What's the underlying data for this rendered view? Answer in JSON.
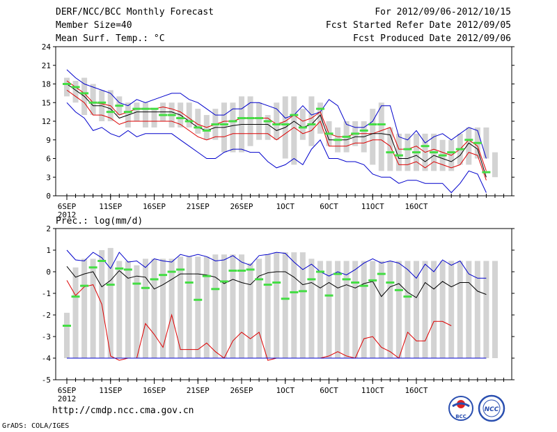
{
  "header": {
    "title": "DERF/NCC/BCC Monthly Forecast",
    "member_size": "Member Size=40",
    "period": "For 2012/09/06-2012/10/15",
    "started": "Fcst Started Refer Date 2012/09/05",
    "produced": "Fcst Produced Date 2012/09/06"
  },
  "footer": {
    "url": "http://cmdp.ncc.cma.gov.cn",
    "grads": "GrADS: COLA/IGES",
    "logo_bcc": "BCC",
    "logo_ncc": "NCC"
  },
  "colors": {
    "bar": "#d3d3d3",
    "max": "#0000cc",
    "min": "#0000cc",
    "upper": "#dd0000",
    "lower": "#dd0000",
    "mean": "#000000",
    "green": "#44dd44"
  },
  "chart_data": [
    {
      "type": "line",
      "title": "Mean Surf. Temp.: °C",
      "ylim": [
        0,
        24
      ],
      "yticks": [
        0,
        3,
        6,
        9,
        12,
        15,
        18,
        21,
        24
      ],
      "ytick_labels": [
        "0",
        "3",
        "6",
        "9",
        "12",
        "15",
        "18",
        "21",
        "24"
      ],
      "x_tick_positions": [
        0,
        5,
        10,
        15,
        20,
        25,
        30,
        35,
        40
      ],
      "x_tick_labels": [
        "6SEP",
        "11SEP",
        "16SEP",
        "21SEP",
        "26SEP",
        "1OCT",
        "6OCT",
        "11OCT",
        "16OCT"
      ],
      "x_year_label": "2012",
      "bar_top": [
        19,
        18.5,
        19,
        18,
        17,
        17,
        16,
        15,
        15,
        15,
        14,
        15,
        15,
        15,
        15,
        14,
        13,
        14,
        15,
        15,
        16,
        16,
        15,
        13,
        15,
        16,
        16,
        14,
        16,
        15,
        12,
        11,
        12,
        12,
        12,
        14,
        15,
        11,
        10,
        10,
        10,
        10,
        10,
        9,
        9,
        10,
        11,
        11,
        11,
        7
      ],
      "bar_bottom": [
        16,
        15,
        13,
        13,
        12,
        12,
        13,
        11,
        12,
        11,
        11,
        12,
        11,
        11,
        11,
        10,
        9,
        9,
        7,
        7,
        7,
        8,
        9,
        9,
        9,
        6,
        5,
        9,
        8,
        10,
        8,
        7,
        7,
        8,
        7,
        5,
        4,
        4,
        4,
        4,
        4,
        4,
        4,
        4,
        4,
        5,
        5,
        6,
        6,
        3
      ],
      "series": [
        {
          "name": "max",
          "values": [
            20.3,
            19,
            18,
            17.5,
            17,
            16.5,
            15,
            14.5,
            15.5,
            15,
            15.5,
            16,
            16.5,
            16.5,
            15.5,
            15,
            14,
            13,
            13,
            14,
            14,
            15,
            15,
            14.5,
            14,
            12.5,
            13,
            14.5,
            13,
            13.5,
            15.5,
            14.5,
            11.5,
            11,
            11,
            12,
            14.5,
            14.5,
            9.5,
            9,
            10.5,
            8.5,
            9.5,
            10,
            9,
            10,
            11,
            10.5,
            6
          ]
        },
        {
          "name": "upper",
          "values": [
            18.5,
            17.5,
            16.5,
            15,
            14.8,
            14.5,
            13,
            13.5,
            14,
            14,
            14,
            14.3,
            14,
            13.5,
            12.5,
            11.5,
            11,
            11.5,
            12,
            12,
            12.5,
            12.5,
            12.5,
            12.5,
            11.5,
            12,
            13,
            12,
            12.5,
            13.5,
            10,
            9.5,
            9.5,
            10,
            10,
            10,
            10.5,
            11,
            7.5,
            7.5,
            8,
            7,
            7.5,
            7,
            6.5,
            7.5,
            9,
            8,
            4
          ]
        },
        {
          "name": "mean",
          "values": [
            18,
            17,
            16,
            14.5,
            14.5,
            14,
            12.5,
            13,
            13.5,
            13.5,
            13.5,
            13.5,
            13.5,
            13,
            12,
            11,
            10.5,
            11,
            11,
            11.3,
            11.5,
            11.5,
            11.5,
            11.5,
            10.5,
            11,
            12,
            11,
            11.5,
            13,
            9,
            9,
            9,
            9.5,
            9.5,
            10,
            10,
            9.8,
            6,
            6,
            6.5,
            5.5,
            6.5,
            6,
            5.5,
            6.5,
            8.5,
            7.5,
            3
          ]
        },
        {
          "name": "lower",
          "values": [
            17,
            16,
            15,
            13,
            13,
            12.5,
            11.5,
            12,
            12,
            12,
            12,
            12,
            12,
            11.5,
            10.5,
            9.5,
            9,
            9.5,
            9.5,
            10,
            10,
            10,
            10,
            10,
            9,
            10,
            11,
            10,
            10.5,
            12,
            8,
            8,
            8,
            8.5,
            8.5,
            9,
            9,
            8,
            5,
            5,
            5.5,
            4.5,
            5.5,
            5,
            4.5,
            5,
            7,
            6.5,
            2.5
          ]
        },
        {
          "name": "min",
          "values": [
            15,
            13.5,
            12.5,
            10.5,
            11,
            10,
            9.5,
            10.5,
            9.5,
            10,
            10,
            10,
            10,
            9,
            8,
            7,
            6,
            6,
            7,
            7.5,
            7.5,
            7,
            7,
            5.5,
            4.5,
            5,
            6,
            5,
            7.5,
            9,
            6,
            6,
            5.5,
            5.5,
            5,
            3.5,
            3,
            3,
            2,
            2.5,
            2.5,
            2,
            2,
            2,
            0.5,
            2,
            4,
            3.5,
            0.5
          ]
        }
      ],
      "markers": [
        18,
        17.5,
        16.5,
        15,
        15,
        13.5,
        14.5,
        13.5,
        14,
        14,
        14,
        13,
        13,
        12.5,
        12,
        11,
        10.5,
        11.5,
        11.5,
        12,
        12.5,
        12.5,
        12.5,
        12,
        11.5,
        11.5,
        13,
        11,
        11.5,
        14,
        10,
        9,
        9.5,
        10,
        10.5,
        11.5,
        11.5,
        7,
        6.5,
        7.5,
        7,
        8,
        7,
        6.5,
        7,
        7.5,
        9,
        8.5,
        3.8
      ]
    },
    {
      "type": "line",
      "title": "Prec.: log(mm/d)",
      "ylim": [
        -5,
        2
      ],
      "yticks": [
        -5,
        -4,
        -3,
        -2,
        -1,
        0,
        1,
        2
      ],
      "ytick_labels": [
        "-5",
        "-4",
        "-3",
        "-2",
        "-1",
        "0",
        "1",
        "2"
      ],
      "x_tick_positions": [
        0,
        5,
        10,
        15,
        20,
        25,
        30,
        35,
        40
      ],
      "x_tick_labels": [
        "6SEP",
        "11SEP",
        "16SEP",
        "21SEP",
        "26SEP",
        "1OCT",
        "6OCT",
        "11OCT",
        "16OCT"
      ],
      "x_year_label": "2012",
      "bar_top": [
        -1.9,
        0.2,
        0.6,
        0.6,
        1,
        1.1,
        0.5,
        0.5,
        0.3,
        0.6,
        0.6,
        0.6,
        0.6,
        0.7,
        0.7,
        0.7,
        0.7,
        0.8,
        0.8,
        0.8,
        0.8,
        0.4,
        0.6,
        0.8,
        0.9,
        0.9,
        0.9,
        0.9,
        0.6,
        0.5,
        0.5,
        0.5,
        0.5,
        0.5,
        0.5,
        0.5,
        0.5,
        0.5,
        0.5,
        0.5,
        0.5,
        0.5,
        0.5,
        0.5,
        0.5,
        0.5,
        0.5,
        0.5,
        0.5,
        0.5
      ],
      "bar_bottom": [
        -4,
        -4,
        -4,
        -4,
        -4,
        -4,
        -4,
        -4,
        -4,
        -4,
        -4,
        -4,
        -4,
        -4,
        -4,
        -4,
        -4,
        -4,
        -4,
        -4,
        -4,
        -4,
        -4,
        -4,
        -4,
        -4,
        -4,
        -4,
        -4,
        -4,
        -4,
        -4,
        -4,
        -4,
        -4,
        -4,
        -4,
        -4,
        -4,
        -4,
        -4,
        -4,
        -4,
        -4,
        -4,
        -4,
        -4,
        -4,
        -4,
        -4
      ],
      "series": [
        {
          "name": "max",
          "values": [
            1,
            0.55,
            0.5,
            0.9,
            0.65,
            0.15,
            0.9,
            0.45,
            0.5,
            0.2,
            0.6,
            0.5,
            0.45,
            0.8,
            0.7,
            0.8,
            0.7,
            0.5,
            0.55,
            0.75,
            0.45,
            0.3,
            0.75,
            0.8,
            0.9,
            0.85,
            0.45,
            0.1,
            0.35,
            0,
            -0.2,
            0,
            -0.15,
            0.1,
            0.4,
            0.6,
            0.4,
            0.5,
            0.4,
            0.1,
            -0.3,
            0.35,
            0,
            0.55,
            0.3,
            0.5,
            -0.1,
            -0.3,
            -0.3
          ]
        },
        {
          "name": "mean",
          "values": [
            0.25,
            -0.25,
            -0.1,
            0,
            -0.7,
            -0.4,
            0.05,
            -0.3,
            -0.2,
            -0.25,
            -0.8,
            -0.6,
            -0.35,
            -0.1,
            -0.1,
            -0.1,
            -0.15,
            -0.25,
            -0.55,
            -0.35,
            -0.5,
            -0.6,
            -0.2,
            -0.05,
            0,
            0,
            -0.25,
            -0.6,
            -0.5,
            -0.75,
            -0.5,
            -0.75,
            -0.6,
            -0.75,
            -0.55,
            -0.45,
            -1.15,
            -0.7,
            -0.55,
            -0.95,
            -1.2,
            -0.5,
            -0.8,
            -0.45,
            -0.7,
            -0.5,
            -0.5,
            -0.9,
            -1.05
          ]
        },
        {
          "name": "lower",
          "values": [
            -0.4,
            -1.1,
            -0.7,
            -0.6,
            -1.5,
            -3.9,
            -4.1,
            -4,
            -4,
            -2.4,
            -2.9,
            -3.5,
            -2,
            -3.6,
            -3.6,
            -3.6,
            -3.3,
            -3.7,
            -4,
            -3.2,
            -2.8,
            -3.1,
            -2.8,
            -4.1,
            -4,
            -4,
            -4,
            -4,
            -4,
            -4,
            -3.9,
            -3.7,
            -3.9,
            -4,
            -3.1,
            -3,
            -3.5,
            -3.7,
            -4,
            -2.8,
            -3.2,
            -3.2,
            -2.3,
            -2.3,
            -2.5
          ]
        },
        {
          "name": "min",
          "values": [
            -4,
            -4,
            -4,
            -4,
            -4,
            -4,
            -4,
            -4,
            -4,
            -4,
            -4,
            -4,
            -4,
            -4,
            -4,
            -4,
            -4,
            -4,
            -4,
            -4,
            -4,
            -4,
            -4,
            -4,
            -4,
            -4,
            -4,
            -4,
            -4,
            -4,
            -4,
            -4,
            -4,
            -4,
            -4,
            -4,
            -4,
            -4,
            -4,
            -4,
            -4,
            -4,
            -4,
            -4,
            -4,
            -4,
            -4,
            -4,
            -4
          ]
        }
      ],
      "markers": [
        -2.5,
        -1.15,
        -0.65,
        0.2,
        0.5,
        -0.6,
        0.15,
        0.1,
        -0.55,
        -0.75,
        -0.35,
        -0.15,
        0,
        0.1,
        -0.5,
        -1.3,
        -0.2,
        -0.8,
        -0.45,
        0.05,
        0.05,
        0.1,
        -0.35,
        -0.6,
        -0.5,
        -1.25,
        -0.95,
        -0.9,
        -0.35,
        0,
        -1.1,
        -0.1,
        -0.35,
        -0.5,
        -0.65,
        -0.4,
        -0.1,
        -0.5,
        -0.85,
        -1.15
      ]
    }
  ]
}
